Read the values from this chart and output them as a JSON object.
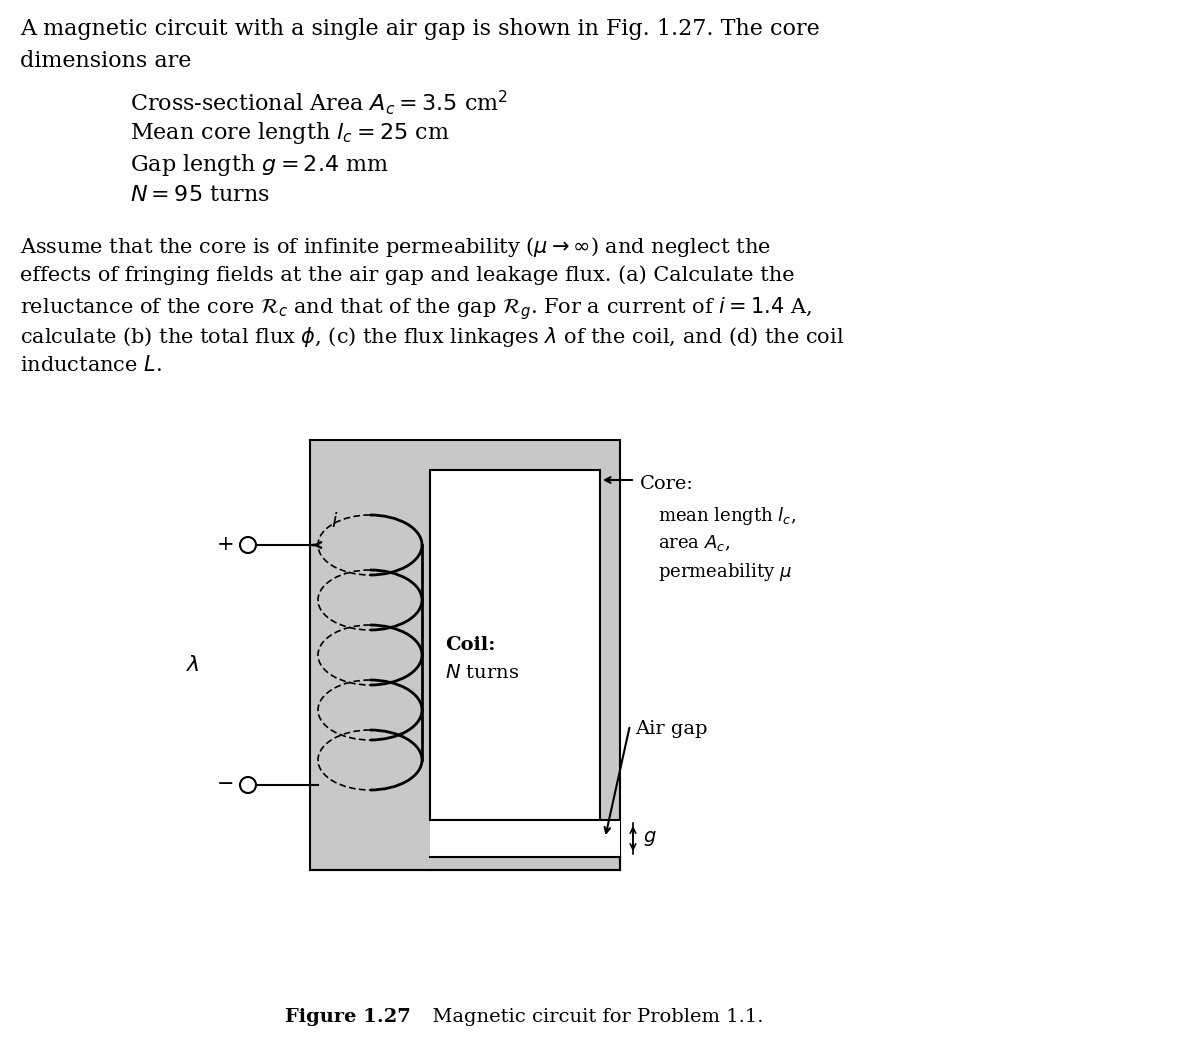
{
  "title_line1": "A magnetic circuit with a single air gap is shown in Fig. 1.27. The core",
  "title_line2": "dimensions are",
  "bullet1": "Cross-sectional Area $A_c = 3.5$ cm$^2$",
  "bullet2": "Mean core length $l_c = 25$ cm",
  "bullet3": "Gap length $g = 2.4$ mm",
  "bullet4": "$N = 95$ turns",
  "body_line1": "Assume that the core is of infinite permeability ($\\mu \\rightarrow \\infty$) and neglect the",
  "body_line2": "effects of fringing fields at the air gap and leakage flux. (a) Calculate the",
  "body_line3": "reluctance of the core $\\mathcal{R}_c$ and that of the gap $\\mathcal{R}_g$. For a current of $i = 1.4$ A,",
  "body_line4": "calculate (b) the total flux $\\phi$, (c) the flux linkages $\\lambda$ of the coil, and (d) the coil",
  "body_line5": "inductance $L$.",
  "core_label": "Core:",
  "core_sub1": "mean length $l_c$,",
  "core_sub2": "area $A_c$,",
  "core_sub3": "permeability $\\mu$",
  "coil_label": "Coil:",
  "coil_sub": "$N$ turns",
  "airgap_label": "Air gap",
  "gap_sym": "$g$",
  "plus_label": "+",
  "minus_label": "−",
  "lambda_label": "$\\lambda$",
  "i_label": "$i$",
  "fig_bold": "Figure 1.27",
  "fig_normal": "  Magnetic circuit for Problem 1.1.",
  "bg_color": "#ffffff",
  "core_gray": "#c8c8c8",
  "inner_gray": "#e0e0e0",
  "text_color": "#000000",
  "fs_title": 16,
  "fs_body": 15,
  "fs_diag": 14,
  "fs_fig": 14
}
